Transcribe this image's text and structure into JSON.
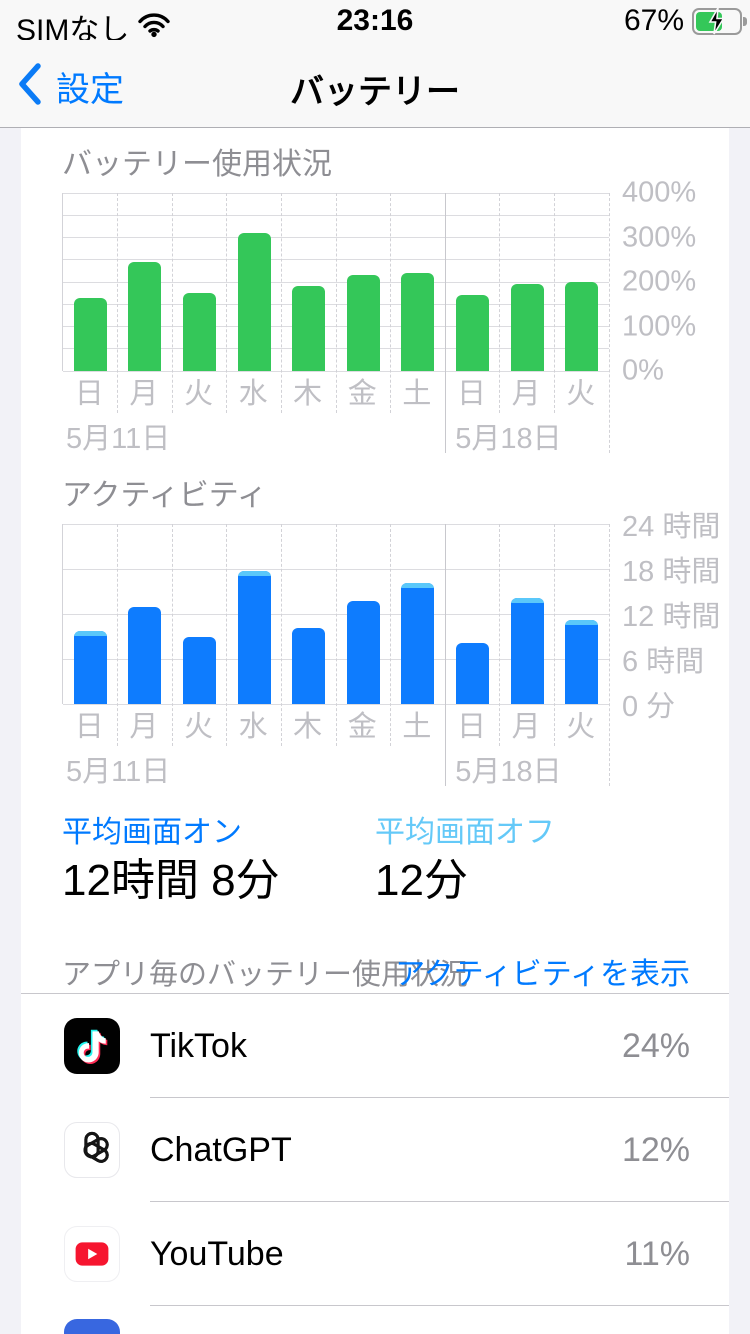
{
  "status_bar": {
    "carrier": "SIMなし",
    "time": "23:16",
    "battery_percent": "67%",
    "icons": {
      "wifi": "wifi-icon",
      "battery": "battery-charging-icon"
    }
  },
  "nav": {
    "back_label": "設定",
    "title": "バッテリー"
  },
  "chart_data": [
    {
      "type": "bar",
      "title": "バッテリー使用状況",
      "categories": [
        "日",
        "月",
        "火",
        "水",
        "木",
        "金",
        "土",
        "日",
        "月",
        "火"
      ],
      "values": [
        165,
        245,
        175,
        310,
        190,
        215,
        220,
        170,
        195,
        200
      ],
      "unit": "%",
      "ylim": [
        0,
        400
      ],
      "yticks": [
        {
          "value": 0,
          "label": "0%"
        },
        {
          "value": 100,
          "label": "100%"
        },
        {
          "value": 200,
          "label": "200%"
        },
        {
          "value": 300,
          "label": "300%"
        },
        {
          "value": 400,
          "label": "400%"
        }
      ],
      "minor_grid_step": 50,
      "week_break_index": 7,
      "date_labels": [
        {
          "index": 0,
          "label": "5月11日"
        },
        {
          "index": 7,
          "label": "5月18日"
        }
      ],
      "legend": "none",
      "bar_color": "#34C759"
    },
    {
      "type": "bar",
      "title": "アクティビティ",
      "categories": [
        "日",
        "月",
        "火",
        "水",
        "木",
        "金",
        "土",
        "日",
        "月",
        "火"
      ],
      "series": [
        {
          "name": "screen-on-hours",
          "values": [
            9.4,
            12.9,
            9.0,
            17.5,
            10.2,
            13.8,
            15.7,
            8.1,
            13.8,
            10.8
          ]
        },
        {
          "name": "screen-off-hours",
          "values": [
            0.3,
            0,
            0,
            0.3,
            0,
            0,
            0.5,
            0,
            0.3,
            0.4
          ]
        }
      ],
      "unit": "hours",
      "ylim": [
        0,
        24
      ],
      "yticks": [
        {
          "value": 0,
          "label": "0 分"
        },
        {
          "value": 6,
          "label": "6 時間"
        },
        {
          "value": 12,
          "label": "12 時間"
        },
        {
          "value": 18,
          "label": "18 時間"
        },
        {
          "value": 24,
          "label": "24 時間"
        }
      ],
      "minor_grid_step": 6,
      "week_break_index": 7,
      "date_labels": [
        {
          "index": 0,
          "label": "5月11日"
        },
        {
          "index": 7,
          "label": "5月18日"
        }
      ],
      "legend": "none",
      "bar_color": "#0E7CFE",
      "cap_color": "#5AC8FA"
    }
  ],
  "averages": {
    "screen_on_label": "平均画面オン",
    "screen_on_value": "12時間 8分",
    "screen_off_label": "平均画面オフ",
    "screen_off_value": "12分"
  },
  "app_section": {
    "header": "アプリ毎のバッテリー使用状況",
    "link": "アクティビティを表示",
    "apps": [
      {
        "name": "TikTok",
        "percent": "24%",
        "icon": "tiktok-app-icon"
      },
      {
        "name": "ChatGPT",
        "percent": "12%",
        "icon": "chatgpt-app-icon"
      },
      {
        "name": "YouTube",
        "percent": "11%",
        "icon": "youtube-app-icon"
      }
    ],
    "partial_next_icon": "blue-app-icon-partial"
  },
  "colors": {
    "accent_blue": "#007AFF",
    "light_blue": "#5AC8FA",
    "battery_green": "#34C759",
    "activity_blue": "#0E7CFE",
    "gray_text": "#8E8E93",
    "axis_text": "#BFBFC4"
  }
}
